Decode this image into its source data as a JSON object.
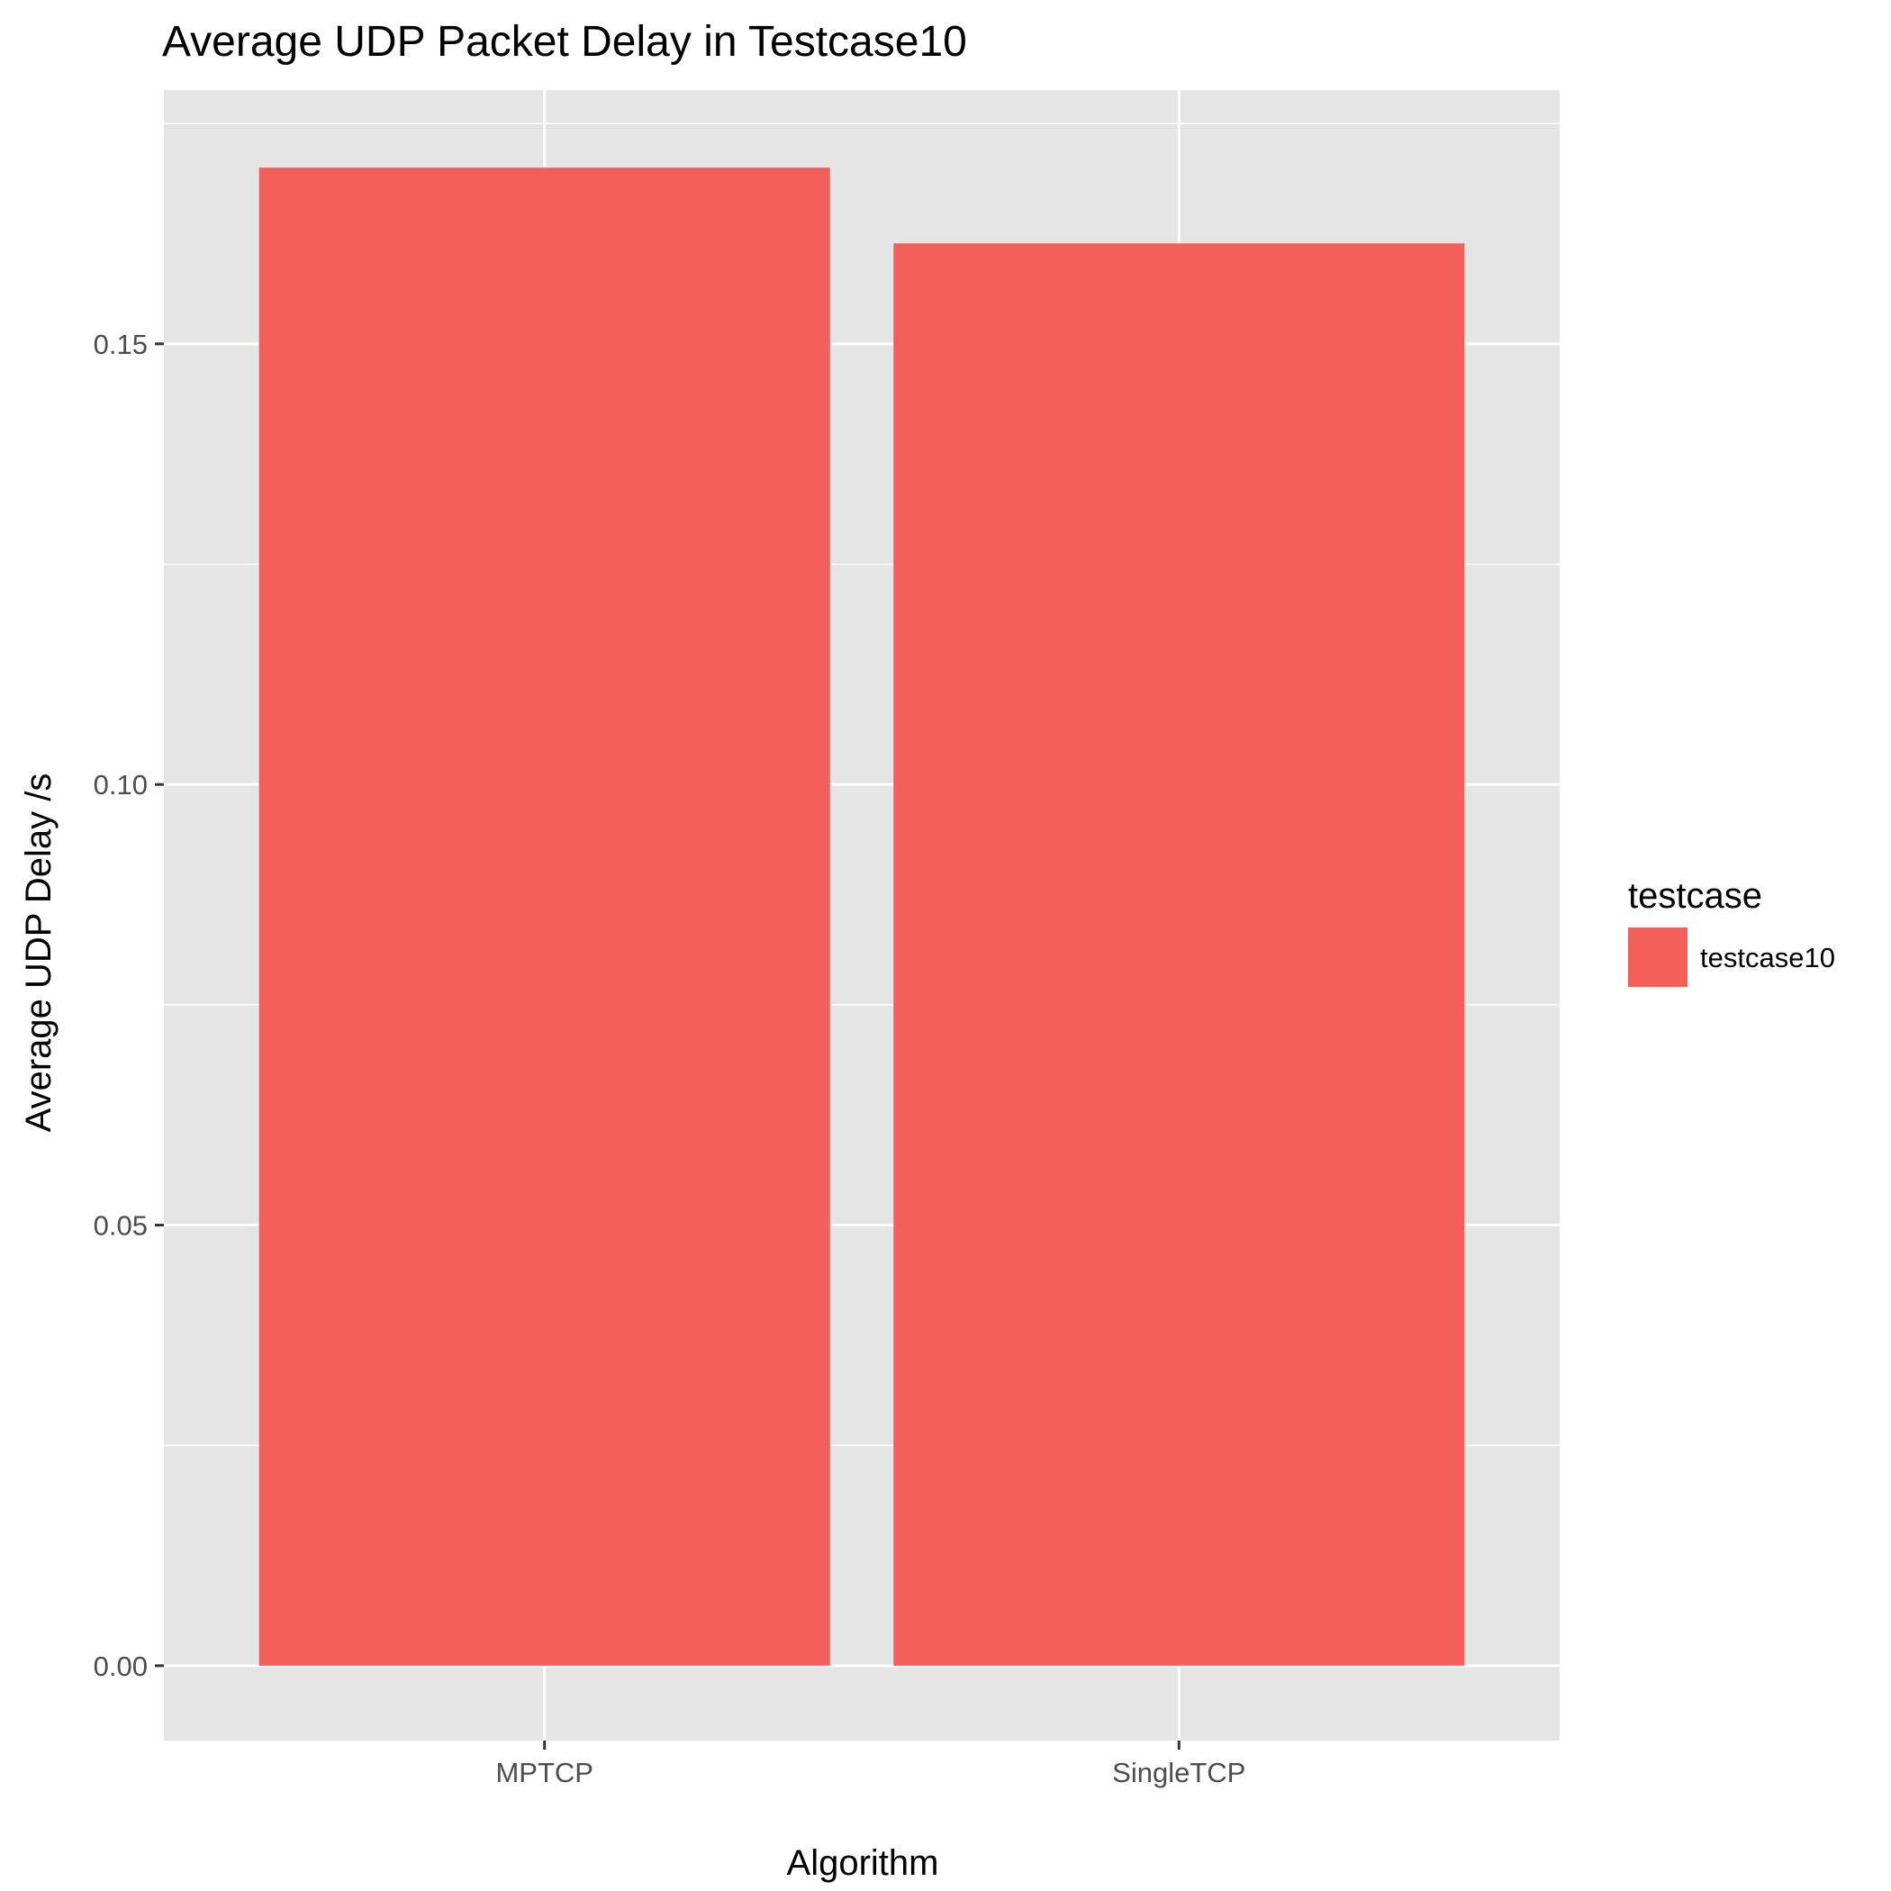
{
  "chart_data": {
    "type": "bar",
    "title": "Average UDP Packet Delay in Testcase10",
    "xlabel": "Algorithm",
    "ylabel": "Average UDP Delay /s",
    "categories": [
      "MPTCP",
      "SingleTCP"
    ],
    "series": [
      {
        "name": "testcase10",
        "values": [
          0.17,
          0.1614
        ],
        "color": "#F3605C"
      }
    ],
    "ylim": [
      -0.0085,
      0.1788
    ],
    "yticks": [
      0.0,
      0.05,
      0.1,
      0.15
    ],
    "ytick_labels": [
      "0.00",
      "0.05",
      "0.10",
      "0.15"
    ],
    "grid": true,
    "legend": {
      "title": "testcase",
      "position": "right"
    },
    "colors": {
      "panel_background": "#E5E5E5",
      "grid": "#FFFFFF",
      "bar": "#F3605C"
    }
  }
}
